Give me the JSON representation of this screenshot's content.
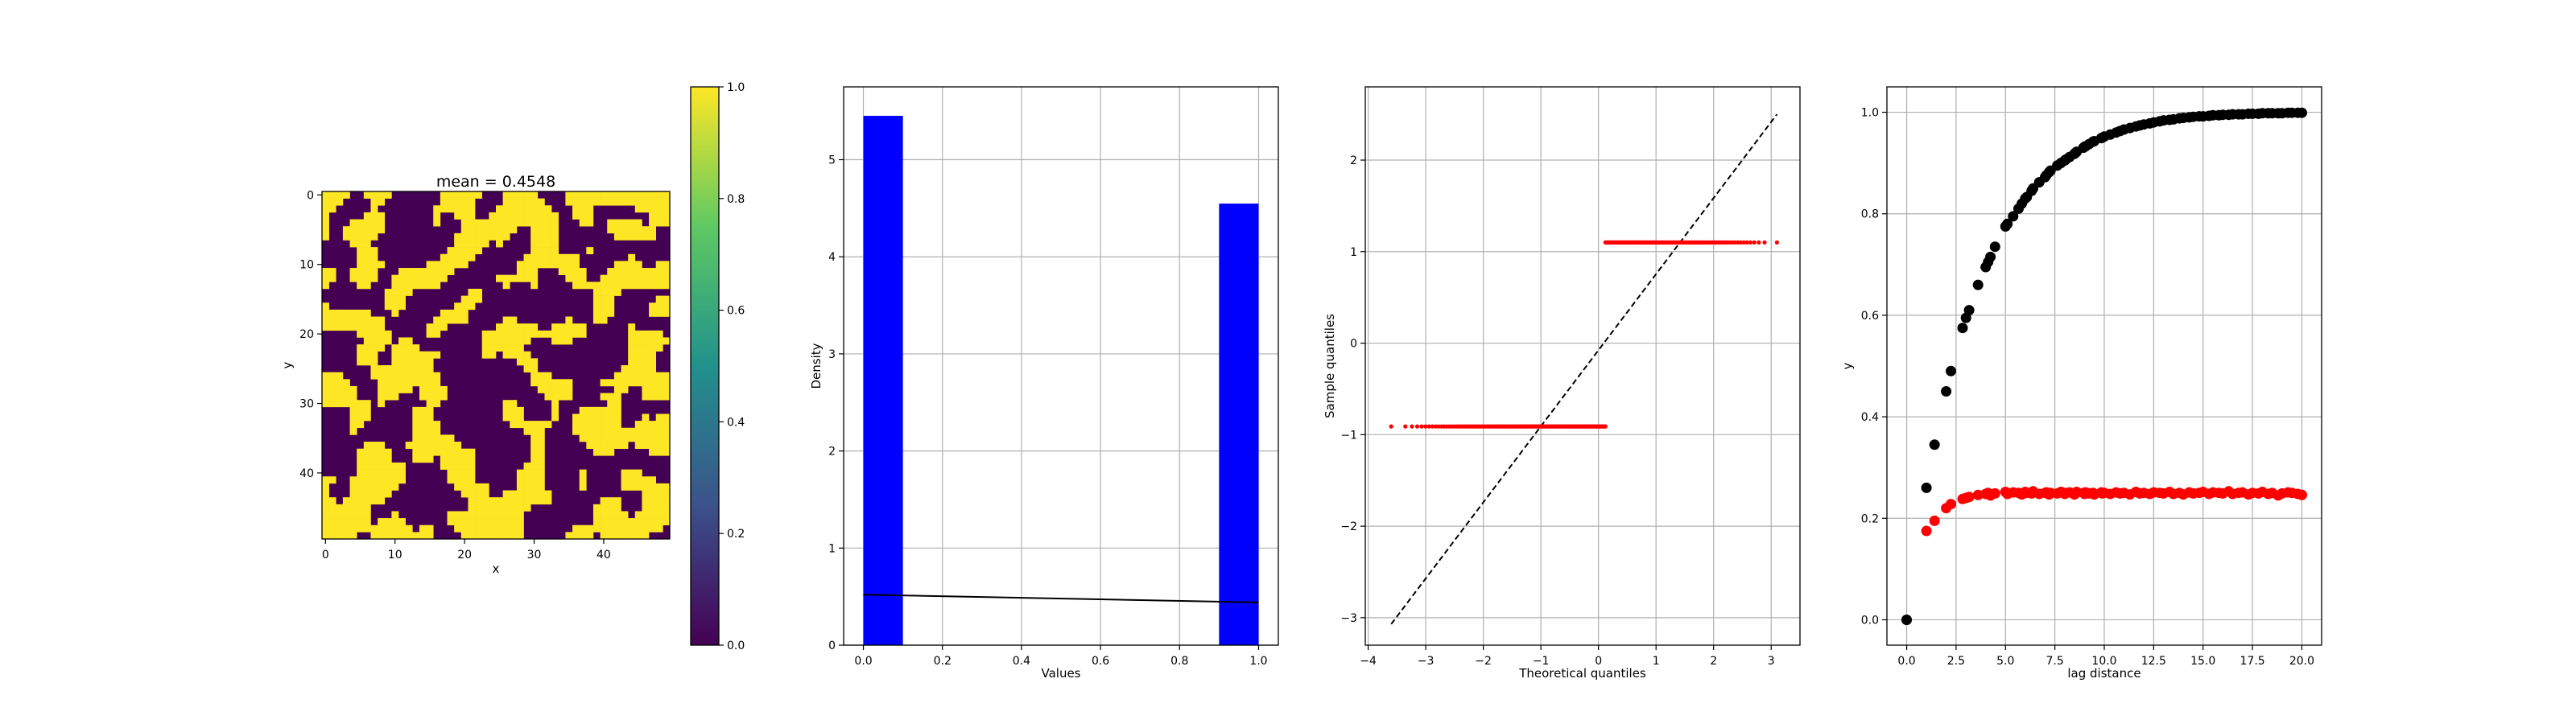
{
  "chart_data": [
    {
      "type": "heatmap",
      "title": "mean = 0.4548",
      "xlabel": "x",
      "ylabel": "y",
      "grid_size": 50,
      "mean": 0.4548,
      "values_binary": [
        0,
        1
      ],
      "xticks": [
        "0",
        "10",
        "20",
        "30",
        "40"
      ],
      "yticks": [
        "0",
        "10",
        "20",
        "30",
        "40"
      ],
      "colorbar": {
        "ticks": [
          "0.0",
          "0.2",
          "0.4",
          "0.6",
          "0.8",
          "1.0"
        ],
        "range": [
          0,
          1
        ],
        "colormap": [
          "#440154",
          "#3b528b",
          "#21918c",
          "#5ec962",
          "#fde725"
        ]
      }
    },
    {
      "type": "bar",
      "xlabel": "Values",
      "ylabel": "Density",
      "xlim": [
        -0.05,
        1.05
      ],
      "ylim": [
        0,
        5.75
      ],
      "xticks": [
        "0.0",
        "0.2",
        "0.4",
        "0.6",
        "0.8",
        "1.0"
      ],
      "yticks": [
        "0",
        "1",
        "2",
        "3",
        "4",
        "5"
      ],
      "bars": [
        {
          "x0": 0.0,
          "x1": 0.1,
          "value": 5.452
        },
        {
          "x0": 0.9,
          "x1": 1.0,
          "value": 4.548
        }
      ],
      "line": {
        "x": [
          0.0,
          1.0
        ],
        "y": [
          0.52,
          0.44
        ]
      },
      "grid": true,
      "bar_color": "#0000ff"
    },
    {
      "type": "scatter",
      "xlabel": "Theoretical quantiles",
      "ylabel": "Sample quantiles",
      "xlim": [
        -4.05,
        3.5
      ],
      "ylim": [
        -3.3,
        2.8
      ],
      "xticks": [
        "−4",
        "−3",
        "−2",
        "−1",
        "0",
        "1",
        "2",
        "3"
      ],
      "yticks": [
        "−3",
        "−2",
        "−1",
        "0",
        "1",
        "2"
      ],
      "reference_line": {
        "x": [
          -3.6,
          3.1
        ],
        "y": [
          -3.07,
          2.5
        ]
      },
      "low_group": {
        "y": -0.91,
        "x_min": -3.6,
        "x_max": 0.12
      },
      "high_group": {
        "y": 1.1,
        "x_min": 0.12,
        "x_max": 3.1
      },
      "grid": true,
      "point_color": "#ff0000"
    },
    {
      "type": "scatter",
      "xlabel": "lag distance",
      "ylabel": "y",
      "xlim": [
        -1.0,
        21.0
      ],
      "ylim": [
        -0.05,
        1.05
      ],
      "xticks": [
        "0.0",
        "2.5",
        "5.0",
        "7.5",
        "10.0",
        "12.5",
        "15.0",
        "17.5",
        "20.0"
      ],
      "yticks": [
        "0.0",
        "0.2",
        "0.4",
        "0.6",
        "0.8",
        "1.0"
      ],
      "series": [
        {
          "color": "#000000",
          "x": [
            0,
            1.0,
            1.41,
            2.0,
            2.24,
            2.83,
            3.0,
            3.16,
            3.61,
            4.0,
            4.12,
            4.24,
            4.47,
            5.0,
            5.1,
            5.39,
            5.66,
            5.83,
            6.0,
            6.08,
            6.32,
            6.4,
            6.71,
            7.0,
            7.07,
            7.21,
            7.28,
            7.62,
            7.81,
            8.0,
            8.06,
            8.25,
            8.49,
            8.54,
            8.6,
            8.94,
            9.0,
            9.06,
            9.22,
            9.43,
            9.49,
            9.85,
            9.9,
            10.0,
            10.3,
            10.6,
            10.8,
            11.0,
            11.3,
            11.6,
            11.8,
            12.0,
            12.3,
            12.5,
            12.8,
            13.0,
            13.3,
            13.5,
            13.8,
            14.0,
            14.3,
            14.5,
            14.8,
            15.0,
            15.3,
            15.5,
            15.8,
            16.0,
            16.3,
            16.5,
            16.8,
            17.0,
            17.3,
            17.5,
            17.8,
            18.0,
            18.3,
            18.5,
            18.8,
            19.0,
            19.3,
            19.5,
            19.8,
            20.0
          ],
          "y": [
            0.0,
            0.26,
            0.345,
            0.45,
            0.49,
            0.575,
            0.595,
            0.61,
            0.66,
            0.695,
            0.705,
            0.715,
            0.735,
            0.775,
            0.78,
            0.795,
            0.81,
            0.82,
            0.83,
            0.833,
            0.845,
            0.85,
            0.862,
            0.872,
            0.876,
            0.882,
            0.885,
            0.895,
            0.9,
            0.905,
            0.907,
            0.912,
            0.918,
            0.92,
            0.922,
            0.93,
            0.932,
            0.933,
            0.937,
            0.942,
            0.943,
            0.949,
            0.95,
            0.952,
            0.956,
            0.96,
            0.963,
            0.966,
            0.969,
            0.972,
            0.974,
            0.976,
            0.978,
            0.98,
            0.982,
            0.984,
            0.985,
            0.986,
            0.988,
            0.989,
            0.99,
            0.991,
            0.992,
            0.992,
            0.993,
            0.994,
            0.994,
            0.995,
            0.995,
            0.996,
            0.996,
            0.996,
            0.997,
            0.997,
            0.997,
            0.998,
            0.998,
            0.998,
            0.998,
            0.998,
            0.999,
            0.999,
            0.999,
            0.999
          ]
        },
        {
          "color": "#ff0000",
          "x": [
            0,
            1.0,
            1.41,
            2.0,
            2.24,
            2.83,
            3.0,
            3.16,
            3.61,
            4.0,
            4.12,
            4.24,
            4.47,
            5.0,
            5.1,
            5.39,
            5.66,
            5.83,
            6.0,
            6.08,
            6.32,
            6.4,
            6.71,
            7.0,
            7.07,
            7.21,
            7.28,
            7.62,
            7.81,
            8.0,
            8.06,
            8.25,
            8.49,
            8.54,
            8.6,
            8.94,
            9.0,
            9.06,
            9.22,
            9.43,
            9.49,
            9.85,
            9.9,
            10.0,
            10.3,
            10.6,
            10.8,
            11.0,
            11.3,
            11.6,
            11.8,
            12.0,
            12.3,
            12.5,
            12.8,
            13.0,
            13.3,
            13.5,
            13.8,
            14.0,
            14.3,
            14.5,
            14.8,
            15.0,
            15.3,
            15.5,
            15.8,
            16.0,
            16.3,
            16.5,
            16.8,
            17.0,
            17.3,
            17.5,
            17.8,
            18.0,
            18.3,
            18.5,
            18.8,
            19.0,
            19.3,
            19.5,
            19.8,
            20.0
          ],
          "y": [
            0.0,
            0.175,
            0.195,
            0.22,
            0.228,
            0.238,
            0.24,
            0.242,
            0.246,
            0.248,
            0.25,
            0.245,
            0.249,
            0.252,
            0.248,
            0.251,
            0.25,
            0.247,
            0.252,
            0.25,
            0.249,
            0.253,
            0.248,
            0.25,
            0.251,
            0.247,
            0.25,
            0.249,
            0.252,
            0.248,
            0.25,
            0.251,
            0.247,
            0.249,
            0.252,
            0.25,
            0.248,
            0.251,
            0.249,
            0.25,
            0.247,
            0.251,
            0.249,
            0.25,
            0.248,
            0.251,
            0.249,
            0.25,
            0.247,
            0.252,
            0.249,
            0.25,
            0.248,
            0.251,
            0.25,
            0.249,
            0.252,
            0.248,
            0.25,
            0.247,
            0.251,
            0.249,
            0.25,
            0.252,
            0.248,
            0.251,
            0.25,
            0.249,
            0.253,
            0.248,
            0.25,
            0.251,
            0.247,
            0.25,
            0.249,
            0.252,
            0.248,
            0.25,
            0.245,
            0.249,
            0.251,
            0.25,
            0.248,
            0.246
          ]
        }
      ],
      "grid": true
    }
  ]
}
